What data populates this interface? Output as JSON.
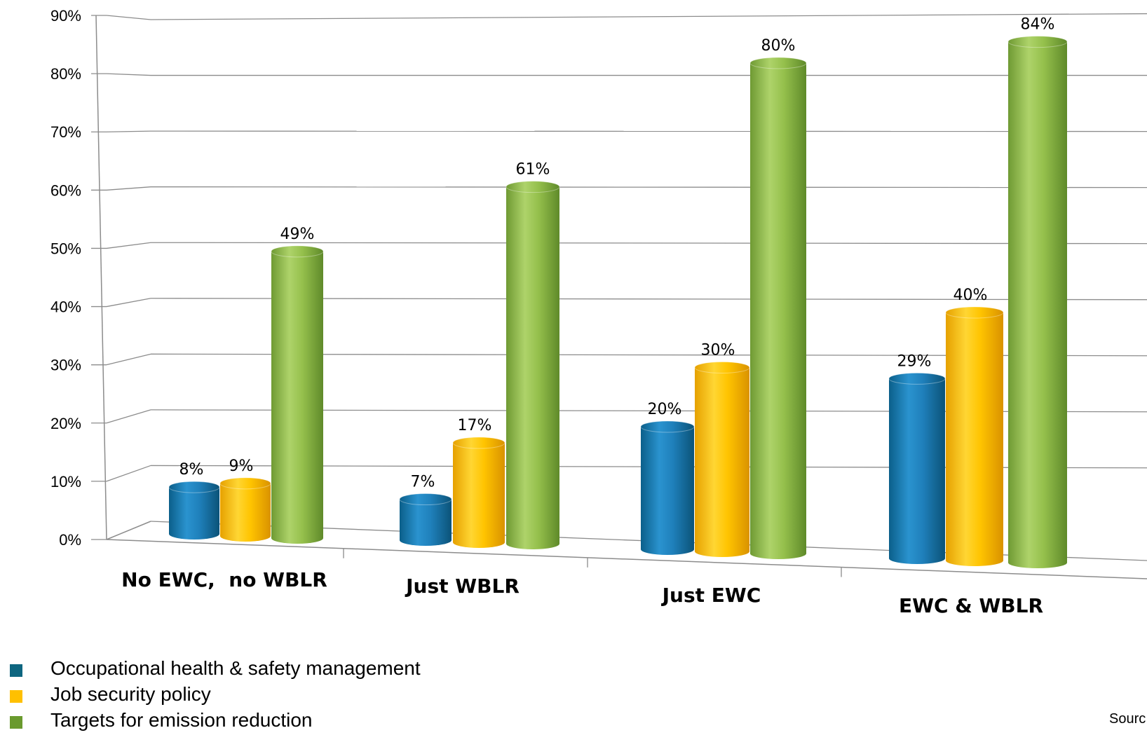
{
  "chart_data": {
    "type": "bar",
    "categories": [
      "No EWC,  no WBLR",
      "Just WBLR",
      "Just EWC",
      "EWC & WBLR"
    ],
    "series": [
      {
        "name": "Occupational health & safety management",
        "values": [
          8,
          7,
          20,
          29
        ],
        "labels": [
          "8%",
          "7%",
          "20%",
          "29%"
        ],
        "color": "#1f7fb4"
      },
      {
        "name": "Job security policy",
        "values": [
          9,
          17,
          30,
          40
        ],
        "labels": [
          "9%",
          "17%",
          "30%",
          "40%"
        ],
        "color": "#ffc000"
      },
      {
        "name": "Targets for emission reduction",
        "values": [
          49,
          61,
          80,
          84
        ],
        "labels": [
          "49%",
          "61%",
          "80%",
          "84%"
        ],
        "color": "#8fbc3f"
      }
    ],
    "yticks": [
      "0%",
      "10%",
      "20%",
      "30%",
      "40%",
      "50%",
      "60%",
      "70%",
      "80%",
      "90%"
    ],
    "ylim": [
      0,
      90
    ],
    "grid": true,
    "legend_position": "bottom-left",
    "style": "3d-cylinder"
  },
  "legend_colors": [
    "#0e6680",
    "#ffc000",
    "#6a9a2e"
  ],
  "source_text": "Sourc"
}
